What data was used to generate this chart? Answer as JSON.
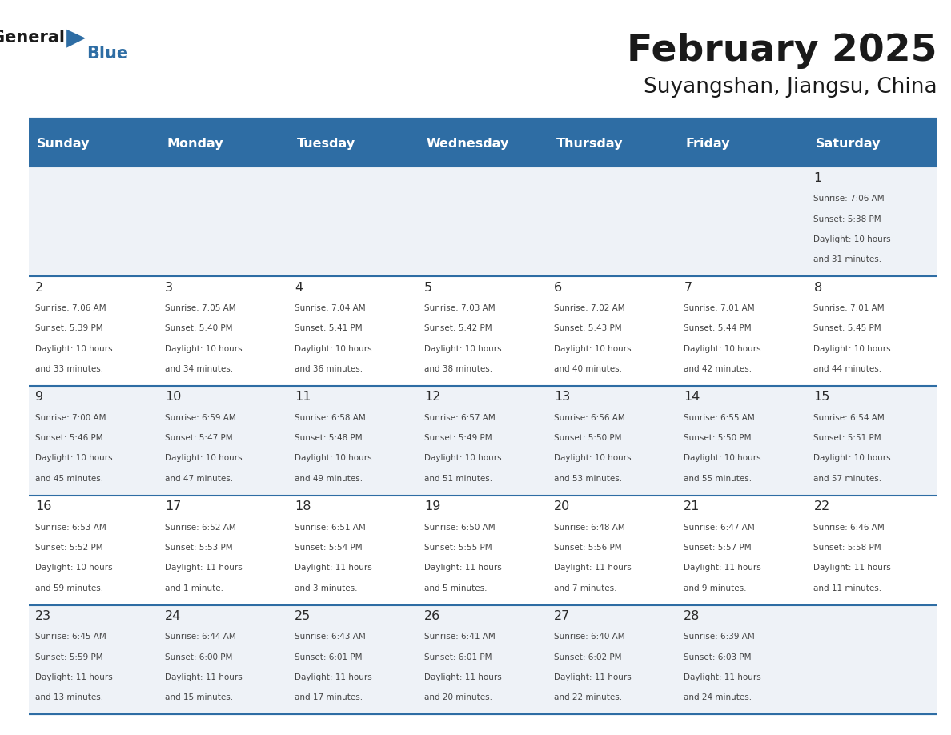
{
  "title": "February 2025",
  "subtitle": "Suyangshan, Jiangsu, China",
  "header_bg": "#2E6DA4",
  "header_text_color": "#FFFFFF",
  "cell_bg_odd": "#EEF2F7",
  "cell_bg_even": "#FFFFFF",
  "grid_color": "#2E6DA4",
  "text_color": "#333333",
  "day_headers": [
    "Sunday",
    "Monday",
    "Tuesday",
    "Wednesday",
    "Thursday",
    "Friday",
    "Saturday"
  ],
  "weeks": [
    [
      {
        "day": "",
        "info": ""
      },
      {
        "day": "",
        "info": ""
      },
      {
        "day": "",
        "info": ""
      },
      {
        "day": "",
        "info": ""
      },
      {
        "day": "",
        "info": ""
      },
      {
        "day": "",
        "info": ""
      },
      {
        "day": "1",
        "info": "Sunrise: 7:06 AM\nSunset: 5:38 PM\nDaylight: 10 hours\nand 31 minutes."
      }
    ],
    [
      {
        "day": "2",
        "info": "Sunrise: 7:06 AM\nSunset: 5:39 PM\nDaylight: 10 hours\nand 33 minutes."
      },
      {
        "day": "3",
        "info": "Sunrise: 7:05 AM\nSunset: 5:40 PM\nDaylight: 10 hours\nand 34 minutes."
      },
      {
        "day": "4",
        "info": "Sunrise: 7:04 AM\nSunset: 5:41 PM\nDaylight: 10 hours\nand 36 minutes."
      },
      {
        "day": "5",
        "info": "Sunrise: 7:03 AM\nSunset: 5:42 PM\nDaylight: 10 hours\nand 38 minutes."
      },
      {
        "day": "6",
        "info": "Sunrise: 7:02 AM\nSunset: 5:43 PM\nDaylight: 10 hours\nand 40 minutes."
      },
      {
        "day": "7",
        "info": "Sunrise: 7:01 AM\nSunset: 5:44 PM\nDaylight: 10 hours\nand 42 minutes."
      },
      {
        "day": "8",
        "info": "Sunrise: 7:01 AM\nSunset: 5:45 PM\nDaylight: 10 hours\nand 44 minutes."
      }
    ],
    [
      {
        "day": "9",
        "info": "Sunrise: 7:00 AM\nSunset: 5:46 PM\nDaylight: 10 hours\nand 45 minutes."
      },
      {
        "day": "10",
        "info": "Sunrise: 6:59 AM\nSunset: 5:47 PM\nDaylight: 10 hours\nand 47 minutes."
      },
      {
        "day": "11",
        "info": "Sunrise: 6:58 AM\nSunset: 5:48 PM\nDaylight: 10 hours\nand 49 minutes."
      },
      {
        "day": "12",
        "info": "Sunrise: 6:57 AM\nSunset: 5:49 PM\nDaylight: 10 hours\nand 51 minutes."
      },
      {
        "day": "13",
        "info": "Sunrise: 6:56 AM\nSunset: 5:50 PM\nDaylight: 10 hours\nand 53 minutes."
      },
      {
        "day": "14",
        "info": "Sunrise: 6:55 AM\nSunset: 5:50 PM\nDaylight: 10 hours\nand 55 minutes."
      },
      {
        "day": "15",
        "info": "Sunrise: 6:54 AM\nSunset: 5:51 PM\nDaylight: 10 hours\nand 57 minutes."
      }
    ],
    [
      {
        "day": "16",
        "info": "Sunrise: 6:53 AM\nSunset: 5:52 PM\nDaylight: 10 hours\nand 59 minutes."
      },
      {
        "day": "17",
        "info": "Sunrise: 6:52 AM\nSunset: 5:53 PM\nDaylight: 11 hours\nand 1 minute."
      },
      {
        "day": "18",
        "info": "Sunrise: 6:51 AM\nSunset: 5:54 PM\nDaylight: 11 hours\nand 3 minutes."
      },
      {
        "day": "19",
        "info": "Sunrise: 6:50 AM\nSunset: 5:55 PM\nDaylight: 11 hours\nand 5 minutes."
      },
      {
        "day": "20",
        "info": "Sunrise: 6:48 AM\nSunset: 5:56 PM\nDaylight: 11 hours\nand 7 minutes."
      },
      {
        "day": "21",
        "info": "Sunrise: 6:47 AM\nSunset: 5:57 PM\nDaylight: 11 hours\nand 9 minutes."
      },
      {
        "day": "22",
        "info": "Sunrise: 6:46 AM\nSunset: 5:58 PM\nDaylight: 11 hours\nand 11 minutes."
      }
    ],
    [
      {
        "day": "23",
        "info": "Sunrise: 6:45 AM\nSunset: 5:59 PM\nDaylight: 11 hours\nand 13 minutes."
      },
      {
        "day": "24",
        "info": "Sunrise: 6:44 AM\nSunset: 6:00 PM\nDaylight: 11 hours\nand 15 minutes."
      },
      {
        "day": "25",
        "info": "Sunrise: 6:43 AM\nSunset: 6:01 PM\nDaylight: 11 hours\nand 17 minutes."
      },
      {
        "day": "26",
        "info": "Sunrise: 6:41 AM\nSunset: 6:01 PM\nDaylight: 11 hours\nand 20 minutes."
      },
      {
        "day": "27",
        "info": "Sunrise: 6:40 AM\nSunset: 6:02 PM\nDaylight: 11 hours\nand 22 minutes."
      },
      {
        "day": "28",
        "info": "Sunrise: 6:39 AM\nSunset: 6:03 PM\nDaylight: 11 hours\nand 24 minutes."
      },
      {
        "day": "",
        "info": ""
      }
    ]
  ]
}
